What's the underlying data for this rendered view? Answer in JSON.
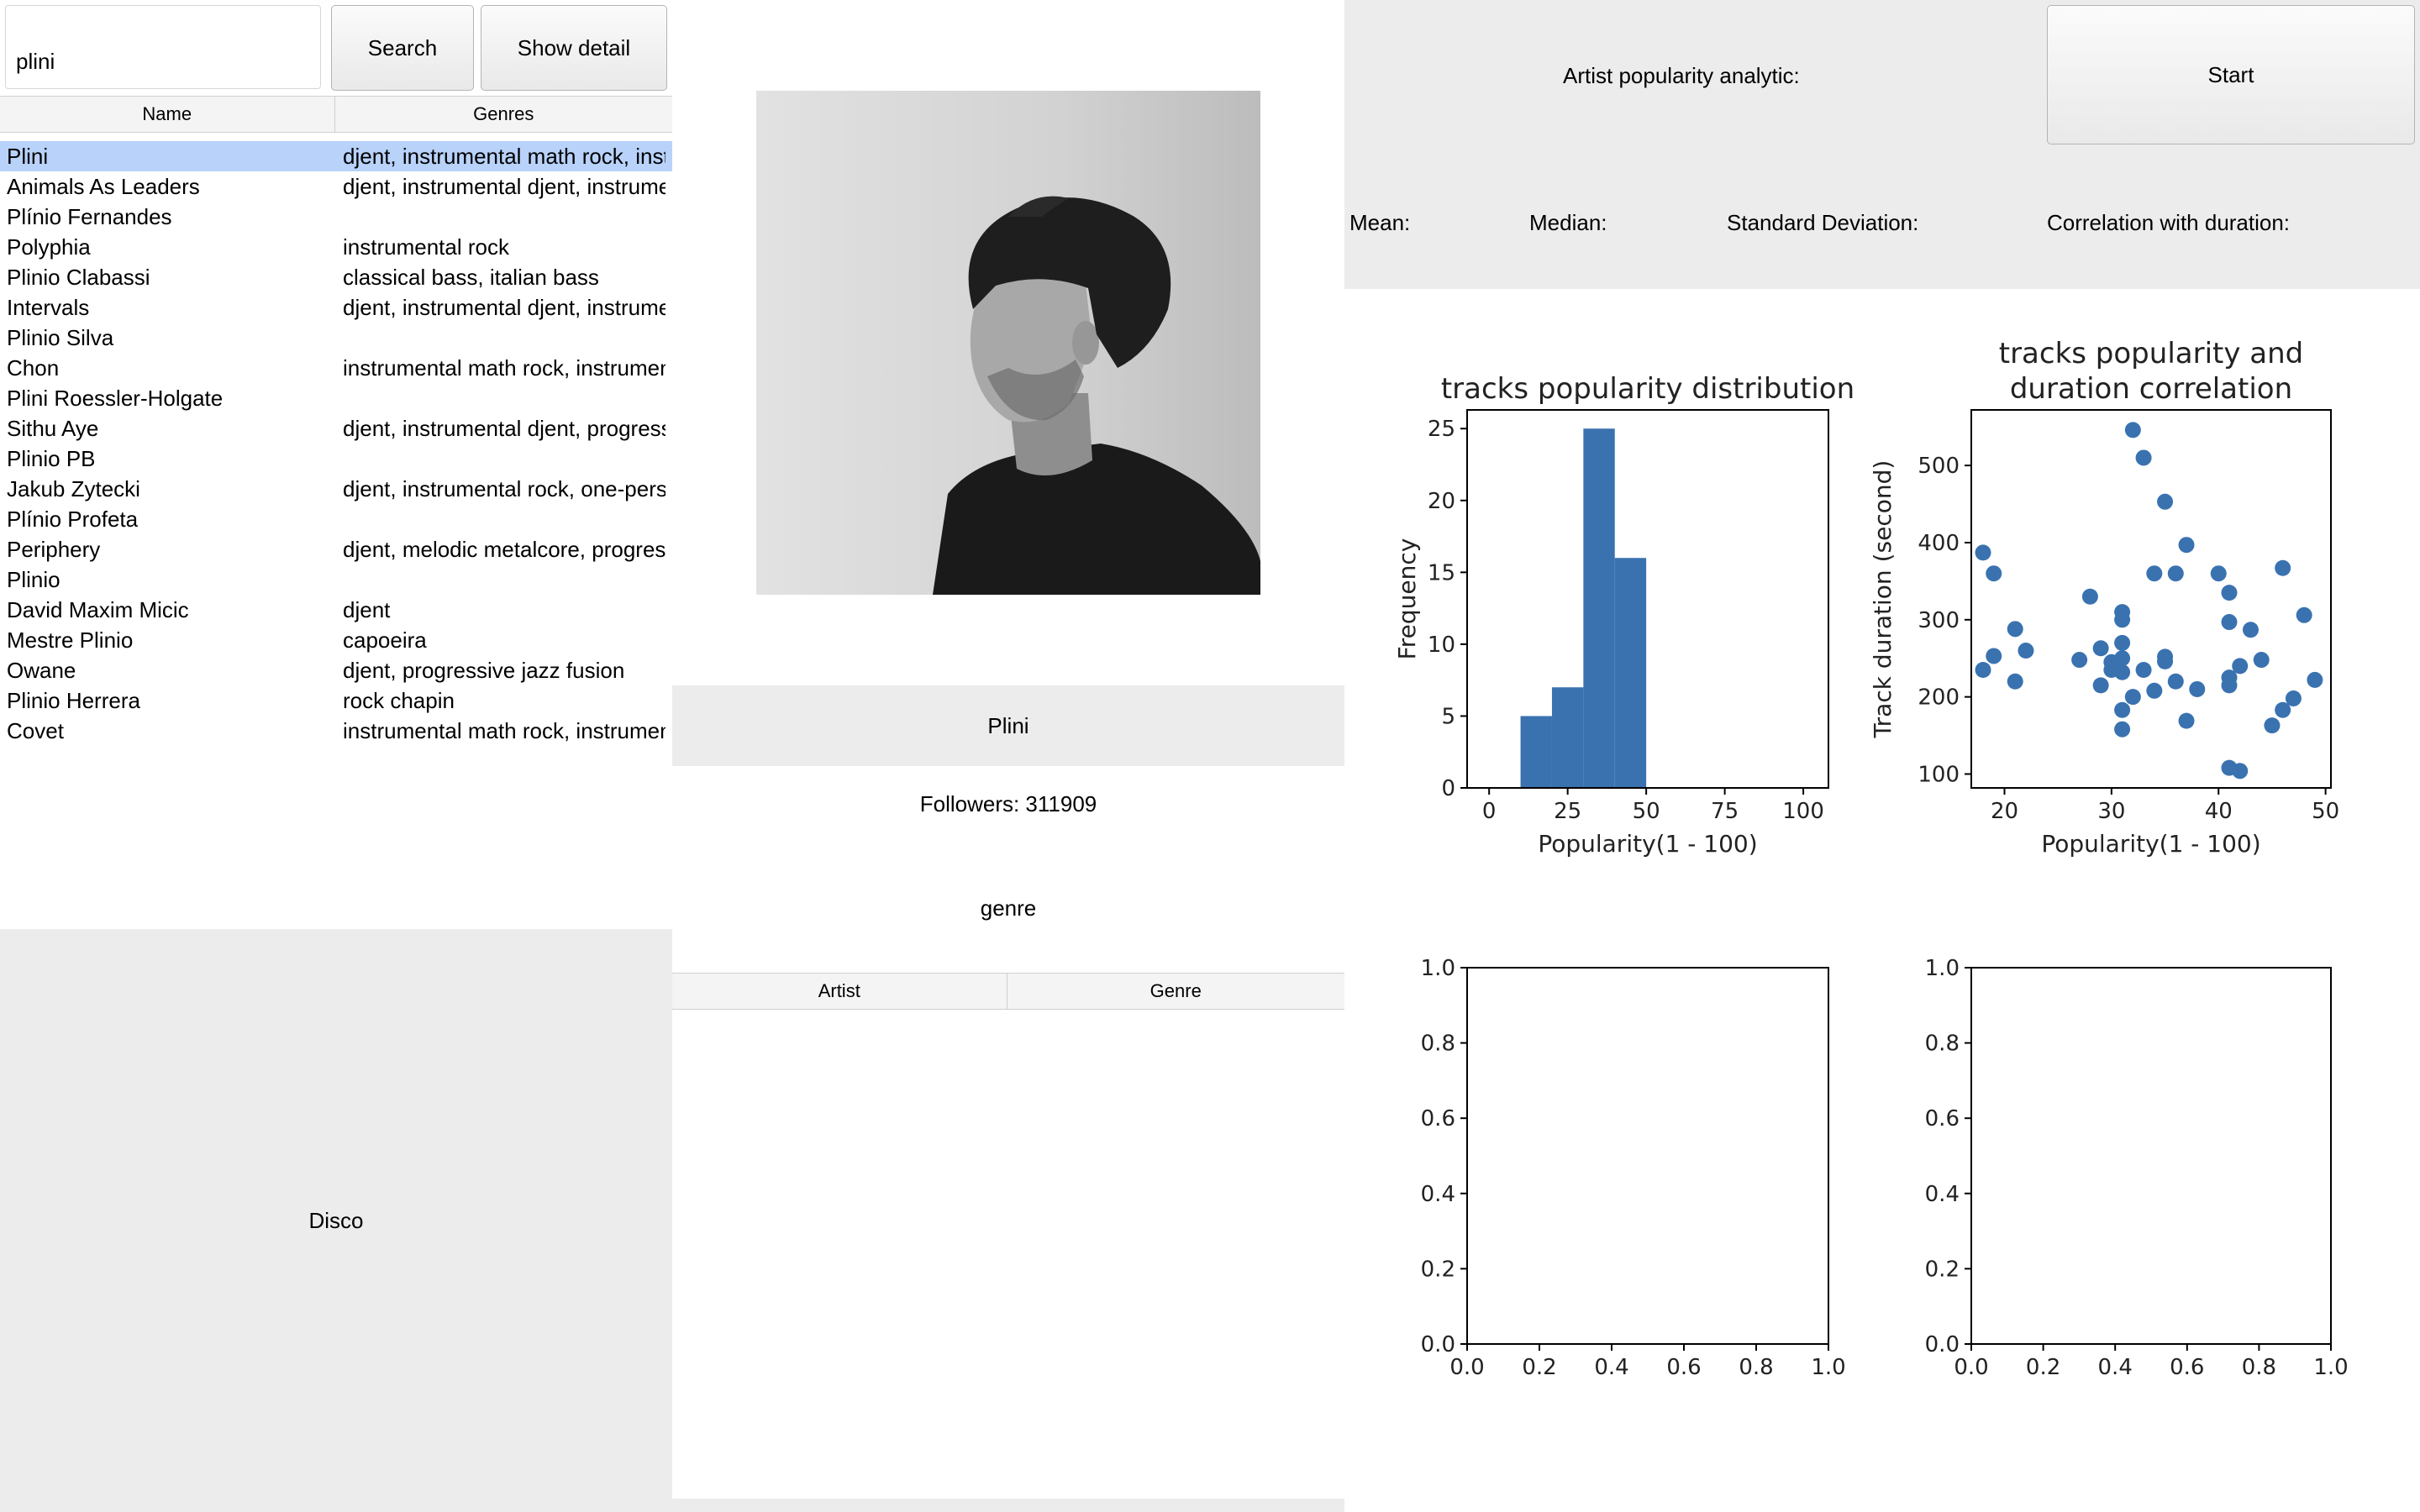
{
  "search": {
    "value": "plini",
    "search_label": "Search",
    "detail_label": "Show detail"
  },
  "artist_table": {
    "columns": [
      "Name",
      "Genres"
    ],
    "rows": [
      {
        "name": "Plini",
        "genres": "djent, instrumental math rock, instrumental rock"
      },
      {
        "name": "Animals As Leaders",
        "genres": "djent, instrumental djent, instrumental rock"
      },
      {
        "name": "Plínio Fernandes",
        "genres": ""
      },
      {
        "name": "Polyphia",
        "genres": "instrumental rock"
      },
      {
        "name": "Plinio Clabassi",
        "genres": "classical bass, italian bass"
      },
      {
        "name": "Intervals",
        "genres": "djent, instrumental djent, instrumental rock"
      },
      {
        "name": "Plinio Silva",
        "genres": ""
      },
      {
        "name": "Chon",
        "genres": "instrumental math rock, instrumental rock"
      },
      {
        "name": "Plini Roessler-Holgate",
        "genres": ""
      },
      {
        "name": "Sithu Aye",
        "genres": "djent, instrumental djent, progressive"
      },
      {
        "name": "Plinio PB",
        "genres": ""
      },
      {
        "name": "Jakub Zytecki",
        "genres": "djent, instrumental rock, one-person band"
      },
      {
        "name": "Plínio Profeta",
        "genres": ""
      },
      {
        "name": "Periphery",
        "genres": "djent, melodic metalcore, progressive"
      },
      {
        "name": "Plinio",
        "genres": ""
      },
      {
        "name": "David Maxim Micic",
        "genres": "djent"
      },
      {
        "name": "Mestre Plinio",
        "genres": "capoeira"
      },
      {
        "name": "Owane",
        "genres": "djent, progressive jazz fusion"
      },
      {
        "name": "Plinio Herrera",
        "genres": "rock chapin"
      },
      {
        "name": "Covet",
        "genres": "instrumental math rock, instrumental rock"
      }
    ]
  },
  "disco": {
    "label": "Disco"
  },
  "detail": {
    "artist_name": "Plini",
    "followers": "Followers: 311909",
    "genre_label": "genre",
    "table_columns": [
      "Artist",
      "Genre"
    ]
  },
  "analytic": {
    "title": "Artist popularity analytic:",
    "start_label": "Start",
    "mean_label": "Mean:",
    "median_label": "Median:",
    "std_label": "Standard Deviation:",
    "corr_label": "Correlation with duration:"
  },
  "colors": {
    "accent": "#3a72b0",
    "selection": "#b8d2fa",
    "panel": "#ececec"
  },
  "chart_data": [
    {
      "type": "bar",
      "title": "tracks popularity distribution",
      "xlabel": "Popularity(1 - 100)",
      "ylabel": "Frequency",
      "xlim": [
        -7,
        108
      ],
      "ylim": [
        0,
        26.3
      ],
      "xticks": [
        0,
        25,
        50,
        75,
        100
      ],
      "yticks": [
        0,
        5,
        10,
        15,
        20,
        25
      ],
      "bins": [
        {
          "x0": 10,
          "x1": 20,
          "value": 5
        },
        {
          "x0": 20,
          "x1": 30,
          "value": 7
        },
        {
          "x0": 30,
          "x1": 40,
          "value": 25
        },
        {
          "x0": 40,
          "x1": 50,
          "value": 16
        }
      ]
    },
    {
      "type": "scatter",
      "title": [
        "tracks popularity and",
        "duration correlation"
      ],
      "xlabel": "Popularity(1 - 100)",
      "ylabel": "Track duration (second)",
      "xlim": [
        16.9,
        50.5
      ],
      "ylim": [
        82,
        572
      ],
      "xticks": [
        20,
        30,
        40,
        50
      ],
      "yticks": [
        100,
        200,
        300,
        400,
        500
      ],
      "points": [
        [
          18,
          235
        ],
        [
          18,
          387
        ],
        [
          19,
          360
        ],
        [
          19,
          253
        ],
        [
          21,
          288
        ],
        [
          21,
          220
        ],
        [
          22,
          260
        ],
        [
          27,
          248
        ],
        [
          28,
          330
        ],
        [
          29,
          215
        ],
        [
          29,
          263
        ],
        [
          30,
          245
        ],
        [
          30,
          235
        ],
        [
          31,
          310
        ],
        [
          31,
          300
        ],
        [
          31,
          270
        ],
        [
          31,
          250
        ],
        [
          31,
          232
        ],
        [
          31,
          183
        ],
        [
          31,
          158
        ],
        [
          32,
          546
        ],
        [
          32,
          200
        ],
        [
          33,
          510
        ],
        [
          33,
          235
        ],
        [
          34,
          360
        ],
        [
          34,
          208
        ],
        [
          35,
          453
        ],
        [
          35,
          252
        ],
        [
          35,
          246
        ],
        [
          36,
          360
        ],
        [
          36,
          220
        ],
        [
          37,
          397
        ],
        [
          37,
          169
        ],
        [
          38,
          210
        ],
        [
          40,
          360
        ],
        [
          41,
          335
        ],
        [
          41,
          297
        ],
        [
          41,
          225
        ],
        [
          41,
          215
        ],
        [
          41,
          108
        ],
        [
          42,
          240
        ],
        [
          42,
          104
        ],
        [
          43,
          287
        ],
        [
          44,
          248
        ],
        [
          45,
          163
        ],
        [
          46,
          367
        ],
        [
          46,
          183
        ],
        [
          47,
          198
        ],
        [
          48,
          306
        ],
        [
          49,
          222
        ]
      ]
    },
    {
      "type": "scatter",
      "title": "",
      "xlim": [
        0,
        1
      ],
      "ylim": [
        0,
        1
      ],
      "xticks": [
        0.0,
        0.2,
        0.4,
        0.6,
        0.8,
        1.0
      ],
      "yticks": [
        0.0,
        0.2,
        0.4,
        0.6,
        0.8,
        1.0
      ],
      "points": []
    },
    {
      "type": "scatter",
      "title": "",
      "xlim": [
        0,
        1
      ],
      "ylim": [
        0,
        1
      ],
      "xticks": [
        0.0,
        0.2,
        0.4,
        0.6,
        0.8,
        1.0
      ],
      "yticks": [
        0.0,
        0.2,
        0.4,
        0.6,
        0.8,
        1.0
      ],
      "points": []
    }
  ]
}
